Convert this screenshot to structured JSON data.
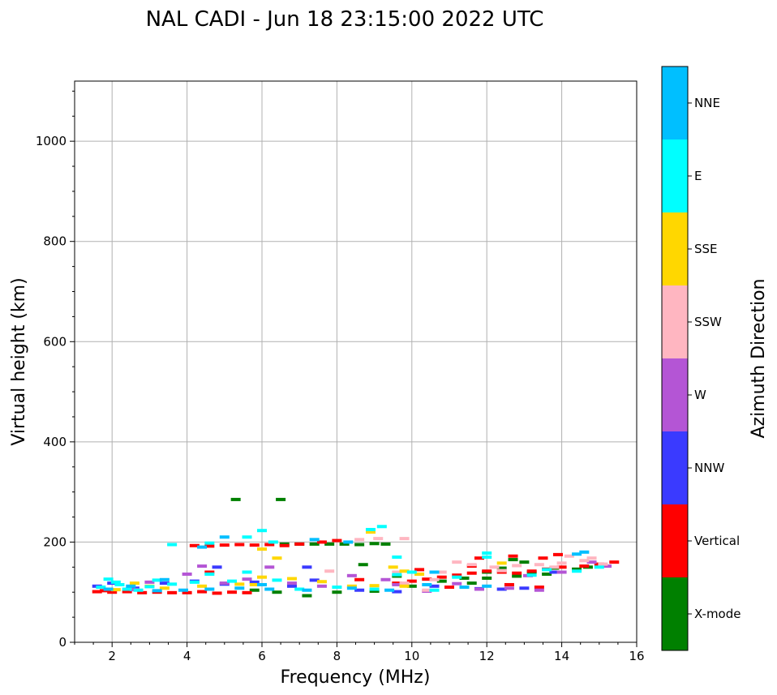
{
  "chart_data": {
    "type": "scatter",
    "title": "NAL CADI - Jun 18 23:15:00 2022 UTC",
    "xlabel": "Frequency (MHz)",
    "ylabel": "Virtual height (km)",
    "xlim": [
      1,
      16
    ],
    "ylim": [
      0,
      1120
    ],
    "xticks": [
      2,
      4,
      6,
      8,
      10,
      12,
      14,
      16
    ],
    "yticks": [
      0,
      200,
      400,
      600,
      800,
      1000
    ],
    "grid": true,
    "colorbar": {
      "label": "Azimuth Direction",
      "categories": [
        {
          "name": "X-mode",
          "color": "#008000"
        },
        {
          "name": "Vertical",
          "color": "#ff0000"
        },
        {
          "name": "NNW",
          "color": "#3a3aff"
        },
        {
          "name": "W",
          "color": "#b455d5"
        },
        {
          "name": "SSW",
          "color": "#ffb6c1"
        },
        {
          "name": "SSE",
          "color": "#ffd700"
        },
        {
          "name": "E",
          "color": "#00ffff"
        },
        {
          "name": "NNE",
          "color": "#00bfff"
        }
      ]
    },
    "series": [
      {
        "name": "X-mode",
        "points": [
          [
            6.6,
            196
          ],
          [
            7.0,
            196
          ],
          [
            7.4,
            196
          ],
          [
            7.8,
            196
          ],
          [
            8.2,
            196
          ],
          [
            8.6,
            195
          ],
          [
            9.0,
            197
          ],
          [
            9.3,
            196
          ],
          [
            5.8,
            104
          ],
          [
            6.4,
            100
          ],
          [
            7.2,
            93
          ],
          [
            8.0,
            100
          ],
          [
            9.0,
            102
          ],
          [
            10.0,
            112
          ],
          [
            10.8,
            122
          ],
          [
            11.4,
            128
          ],
          [
            12.0,
            140
          ],
          [
            12.4,
            148
          ],
          [
            12.8,
            132
          ],
          [
            13.2,
            140
          ],
          [
            13.6,
            136
          ],
          [
            13.8,
            148
          ],
          [
            14.4,
            146
          ],
          [
            14.7,
            150
          ],
          [
            8.7,
            155
          ],
          [
            9.6,
            132
          ],
          [
            12.0,
            128
          ],
          [
            11.6,
            118
          ],
          [
            6.5,
            285
          ],
          [
            5.3,
            285
          ],
          [
            13.0,
            160
          ],
          [
            12.7,
            165
          ]
        ]
      },
      {
        "name": "Vertical",
        "points": [
          [
            1.6,
            101
          ],
          [
            1.8,
            103
          ],
          [
            2.0,
            100
          ],
          [
            2.4,
            101
          ],
          [
            2.8,
            99
          ],
          [
            3.2,
            100
          ],
          [
            3.6,
            99
          ],
          [
            4.0,
            99
          ],
          [
            4.4,
            101
          ],
          [
            4.8,
            98
          ],
          [
            5.2,
            100
          ],
          [
            5.6,
            99
          ],
          [
            4.2,
            193
          ],
          [
            4.6,
            192
          ],
          [
            5.0,
            194
          ],
          [
            5.4,
            195
          ],
          [
            5.8,
            194
          ],
          [
            6.2,
            195
          ],
          [
            6.6,
            193
          ],
          [
            7.0,
            196
          ],
          [
            7.6,
            200
          ],
          [
            8.0,
            203
          ],
          [
            9.6,
            118
          ],
          [
            10.0,
            122
          ],
          [
            10.4,
            126
          ],
          [
            10.8,
            130
          ],
          [
            11.2,
            134
          ],
          [
            11.6,
            138
          ],
          [
            12.0,
            142
          ],
          [
            12.4,
            140
          ],
          [
            12.8,
            138
          ],
          [
            13.2,
            142
          ],
          [
            13.6,
            146
          ],
          [
            14.0,
            150
          ],
          [
            14.6,
            152
          ],
          [
            15.0,
            156
          ],
          [
            15.4,
            160
          ],
          [
            11.6,
            152
          ],
          [
            11.8,
            168
          ],
          [
            12.7,
            172
          ],
          [
            13.5,
            168
          ],
          [
            13.9,
            175
          ],
          [
            11.0,
            110
          ],
          [
            12.6,
            115
          ],
          [
            13.4,
            110
          ],
          [
            10.2,
            145
          ],
          [
            8.6,
            125
          ],
          [
            4.6,
            140
          ]
        ]
      },
      {
        "name": "NNW",
        "points": [
          [
            1.6,
            112
          ],
          [
            2.0,
            118
          ],
          [
            2.6,
            108
          ],
          [
            3.4,
            118
          ],
          [
            4.2,
            122
          ],
          [
            5.0,
            116
          ],
          [
            5.8,
            120
          ],
          [
            6.8,
            112
          ],
          [
            7.4,
            124
          ],
          [
            8.6,
            104
          ],
          [
            9.6,
            101
          ],
          [
            10.6,
            112
          ],
          [
            11.8,
            107
          ],
          [
            12.4,
            106
          ],
          [
            13.0,
            108
          ],
          [
            13.8,
            140
          ],
          [
            7.2,
            150
          ],
          [
            4.8,
            150
          ]
        ]
      },
      {
        "name": "W",
        "points": [
          [
            2.6,
            105
          ],
          [
            3.0,
            120
          ],
          [
            4.0,
            136
          ],
          [
            4.4,
            152
          ],
          [
            5.0,
            118
          ],
          [
            5.6,
            126
          ],
          [
            6.2,
            150
          ],
          [
            6.8,
            118
          ],
          [
            7.6,
            112
          ],
          [
            8.4,
            133
          ],
          [
            9.3,
            125
          ],
          [
            9.6,
            115
          ],
          [
            10.4,
            102
          ],
          [
            11.2,
            117
          ],
          [
            11.8,
            106
          ],
          [
            12.6,
            108
          ],
          [
            13.4,
            104
          ],
          [
            14.0,
            140
          ],
          [
            14.8,
            160
          ],
          [
            13.1,
            133
          ],
          [
            15.2,
            152
          ]
        ]
      },
      {
        "name": "SSW",
        "points": [
          [
            9.8,
            118
          ],
          [
            10.4,
            104
          ],
          [
            11.2,
            160
          ],
          [
            11.6,
            155
          ],
          [
            12.2,
            150
          ],
          [
            12.8,
            153
          ],
          [
            13.4,
            155
          ],
          [
            14.0,
            158
          ],
          [
            14.6,
            163
          ],
          [
            14.8,
            168
          ],
          [
            15.1,
            156
          ],
          [
            14.2,
            172
          ],
          [
            13.8,
            150
          ],
          [
            12.4,
            143
          ],
          [
            10.8,
            140
          ],
          [
            8.6,
            205
          ],
          [
            9.1,
            207
          ],
          [
            9.8,
            207
          ],
          [
            7.8,
            142
          ],
          [
            9.6,
            140
          ],
          [
            10.6,
            125
          ]
        ]
      },
      {
        "name": "SSE",
        "points": [
          [
            2.1,
            105
          ],
          [
            2.6,
            118
          ],
          [
            3.0,
            112
          ],
          [
            3.4,
            108
          ],
          [
            4.4,
            112
          ],
          [
            5.4,
            116
          ],
          [
            6.0,
            130
          ],
          [
            6.8,
            127
          ],
          [
            7.6,
            121
          ],
          [
            8.4,
            112
          ],
          [
            9.0,
            113
          ],
          [
            9.8,
            142
          ],
          [
            10.2,
            136
          ],
          [
            6.4,
            168
          ],
          [
            6.0,
            186
          ],
          [
            8.9,
            220
          ],
          [
            9.5,
            150
          ],
          [
            9.8,
            112
          ],
          [
            12.4,
            158
          ],
          [
            5.8,
            115
          ]
        ]
      },
      {
        "name": "E",
        "points": [
          [
            1.7,
            110
          ],
          [
            2.2,
            115
          ],
          [
            2.7,
            104
          ],
          [
            3.2,
            124
          ],
          [
            3.6,
            116
          ],
          [
            4.2,
            120
          ],
          [
            4.6,
            136
          ],
          [
            5.2,
            122
          ],
          [
            5.6,
            140
          ],
          [
            6.4,
            124
          ],
          [
            7.0,
            106
          ],
          [
            8.0,
            110
          ],
          [
            9.0,
            106
          ],
          [
            9.6,
            135
          ],
          [
            10.6,
            104
          ],
          [
            11.2,
            130
          ],
          [
            10.0,
            140
          ],
          [
            12.0,
            170
          ],
          [
            12.0,
            178
          ],
          [
            13.6,
            145
          ],
          [
            8.9,
            225
          ],
          [
            9.2,
            231
          ],
          [
            9.6,
            170
          ],
          [
            6.0,
            223
          ],
          [
            6.3,
            200
          ],
          [
            5.6,
            210
          ],
          [
            4.6,
            198
          ],
          [
            3.6,
            195
          ],
          [
            2.1,
            120
          ],
          [
            1.9,
            126
          ],
          [
            2.4,
            106
          ],
          [
            3.0,
            111
          ],
          [
            13.2,
            134
          ],
          [
            14.4,
            142
          ],
          [
            15.0,
            150
          ]
        ]
      },
      {
        "name": "NNE",
        "points": [
          [
            1.9,
            106
          ],
          [
            2.5,
            112
          ],
          [
            3.2,
            103
          ],
          [
            3.9,
            104
          ],
          [
            4.6,
            106
          ],
          [
            5.4,
            108
          ],
          [
            6.2,
            106
          ],
          [
            7.2,
            104
          ],
          [
            8.4,
            108
          ],
          [
            9.4,
            104
          ],
          [
            10.4,
            115
          ],
          [
            10.6,
            140
          ],
          [
            11.4,
            110
          ],
          [
            14.6,
            180
          ],
          [
            14.4,
            176
          ],
          [
            12.0,
            112
          ],
          [
            5.0,
            210
          ],
          [
            7.4,
            205
          ],
          [
            8.3,
            200
          ],
          [
            4.4,
            190
          ],
          [
            6.0,
            115
          ],
          [
            3.4,
            125
          ]
        ]
      }
    ]
  }
}
